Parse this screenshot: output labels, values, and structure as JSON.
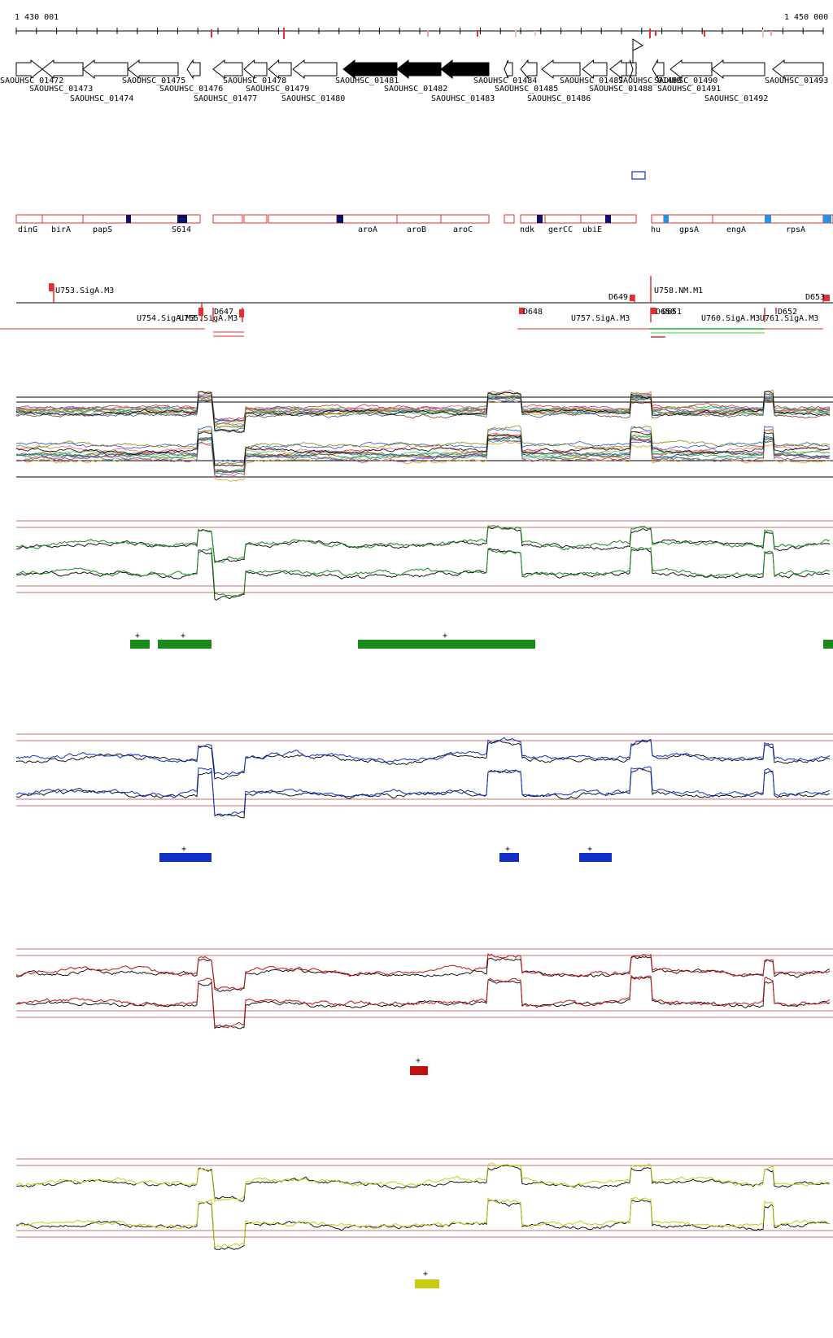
{
  "ruler": {
    "start_label": "1 430 001",
    "end_label": "1 450 000"
  },
  "genes": [
    {
      "label": "SAOUHSC_01472",
      "dir": "right",
      "filled": false
    },
    {
      "label": "SAOUHSC_01473",
      "dir": "left",
      "filled": false
    },
    {
      "label": "SAOUHSC_01474",
      "dir": "left",
      "filled": false
    },
    {
      "label": "SAOUHSC_01475",
      "dir": "left",
      "filled": false
    },
    {
      "label": "SAOUHSC_01476",
      "dir": "left",
      "filled": false
    },
    {
      "label": "SAOUHSC_01477",
      "dir": "left",
      "filled": false
    },
    {
      "label": "SAOUHSC_01478",
      "dir": "left",
      "filled": false
    },
    {
      "label": "SAOUHSC_01479",
      "dir": "left",
      "filled": false
    },
    {
      "label": "SAOUHSC_01480",
      "dir": "left",
      "filled": false
    },
    {
      "label": "SAOUHSC_01481",
      "dir": "left",
      "filled": true
    },
    {
      "label": "SAOUHSC_01482",
      "dir": "left",
      "filled": true
    },
    {
      "label": "SAOUHSC_01483",
      "dir": "left",
      "filled": true
    },
    {
      "label": "SAOUHSC_01484",
      "dir": "left",
      "filled": false
    },
    {
      "label": "SAOUHSC_01485",
      "dir": "left",
      "filled": false
    },
    {
      "label": "SAOUHSC_01486",
      "dir": "left",
      "filled": false
    },
    {
      "label": "SAOUHSC_01487",
      "dir": "left",
      "filled": false
    },
    {
      "label": "SAOUHSC_01488",
      "dir": "left",
      "filled": false
    },
    {
      "label": "SAOUHSC_01489",
      "dir": "right",
      "filled": false
    },
    {
      "label": "SAOUHSC_01490",
      "dir": "left",
      "filled": false
    },
    {
      "label": "SAOUHSC_01491",
      "dir": "left",
      "filled": false
    },
    {
      "label": "SAOUHSC_01492",
      "dir": "left",
      "filled": false
    },
    {
      "label": "SAOUHSC_01493",
      "dir": "left",
      "filled": false
    }
  ],
  "operon_names": [
    "dinG",
    "birA",
    "papS",
    "S614",
    "aroA",
    "aroB",
    "aroC",
    "ndk",
    "gerCC",
    "ubiE",
    "hu",
    "gpsA",
    "engA",
    "rpsA"
  ],
  "transcripts": [
    "U753.SigA.M3",
    "U754.SigA.M3",
    "U755.SigA.M3",
    "D647",
    "D648",
    "D649",
    "U757.SigA.M3",
    "U758.NM.M1",
    "D650",
    "D651",
    "U760.SigA.M3",
    "U761.SigA.M3",
    "D652",
    "D653"
  ],
  "conditions": [
    {
      "name": "green",
      "color": "#1a8a1a",
      "mark": "+"
    },
    {
      "name": "blue",
      "color": "#1030c8",
      "mark": "+"
    },
    {
      "name": "red",
      "color": "#c01010",
      "mark": "+"
    },
    {
      "name": "yellow",
      "color": "#c8cc10",
      "mark": "+"
    }
  ]
}
